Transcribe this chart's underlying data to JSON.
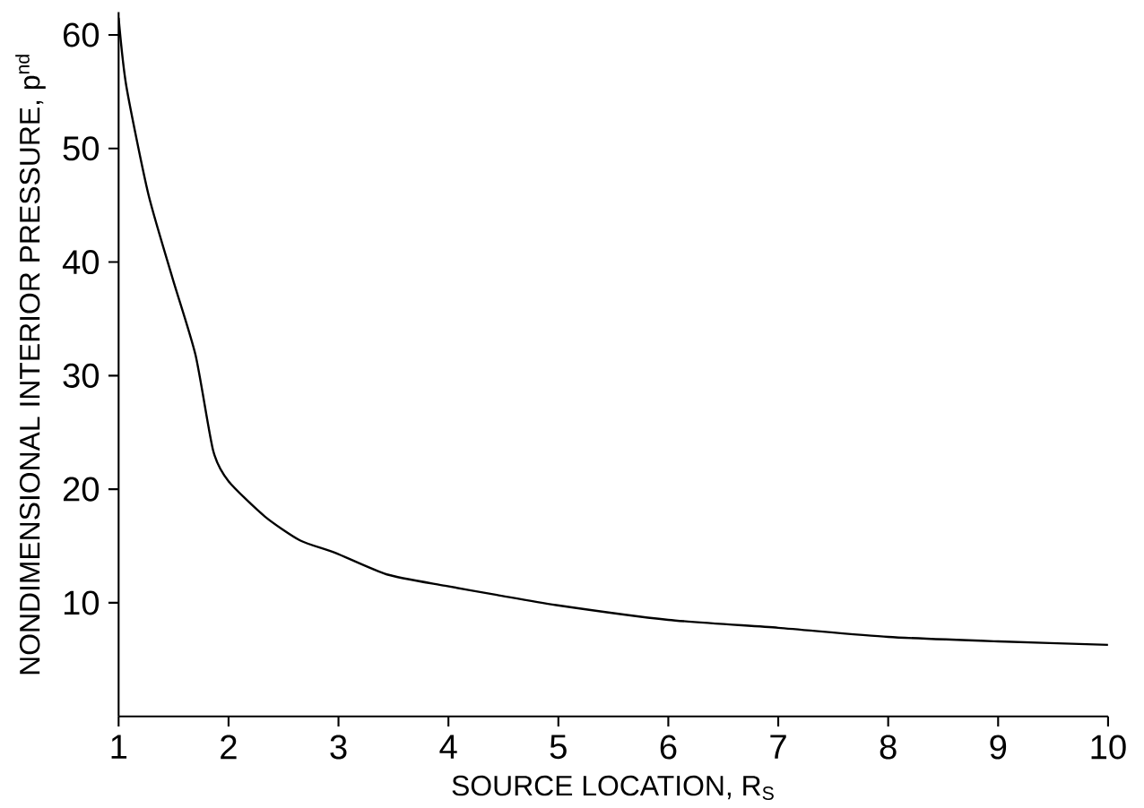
{
  "chart_data": {
    "type": "line",
    "xlabel": "SOURCE LOCATION, R$_{S}$",
    "ylabel": "NONDIMENSIONAL INTERIOR PRESSURE, p$^{nd}$",
    "x": [
      1,
      1.07,
      1.27,
      1.49,
      1.7,
      1.86,
      2,
      2.33,
      2.65,
      2.97,
      3.44,
      3.97,
      4.44,
      4.98,
      6,
      7,
      8,
      9,
      10
    ],
    "values": [
      61.5,
      55.5,
      46,
      38.6,
      31.8,
      23.4,
      20.7,
      17.6,
      15.5,
      14.4,
      12.5,
      11.5,
      10.7,
      9.8,
      8.5,
      7.8,
      7.0,
      6.6,
      6.3
    ],
    "color": "#000000",
    "xlim": [
      1,
      10
    ],
    "ylim": [
      0,
      62
    ],
    "xticks": [
      1,
      2,
      3,
      4,
      5,
      6,
      7,
      8,
      9,
      10
    ],
    "yticks": [
      10,
      20,
      30,
      40,
      50,
      60
    ],
    "grid": false,
    "marker": "none",
    "line_style": "solid"
  }
}
